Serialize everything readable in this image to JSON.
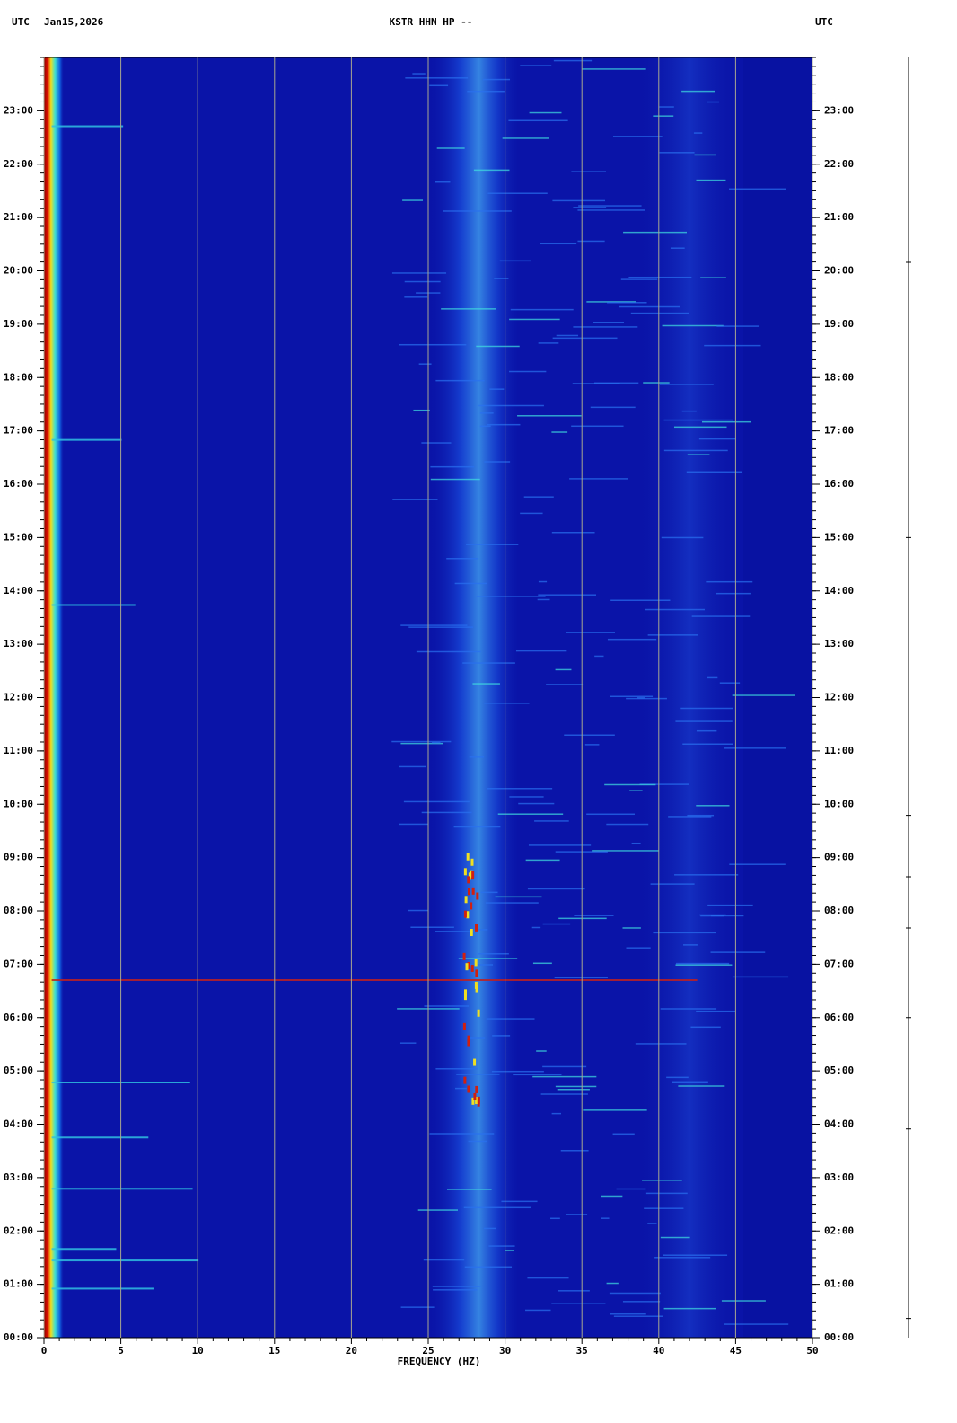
{
  "chart_data": {
    "type": "spectrogram",
    "header_left": "UTC",
    "date": "Jan15,2026",
    "title": "KSTR HHN HP --",
    "header_right": "UTC",
    "xlabel": "FREQUENCY (HZ)",
    "xlim": [
      0,
      50
    ],
    "xticks": [
      0,
      5,
      10,
      15,
      20,
      25,
      30,
      35,
      40,
      45,
      50
    ],
    "ylim": [
      0,
      24
    ],
    "yticks": [
      {
        "value": 0,
        "label": "00:00"
      },
      {
        "value": 1,
        "label": "01:00"
      },
      {
        "value": 2,
        "label": "02:00"
      },
      {
        "value": 3,
        "label": "03:00"
      },
      {
        "value": 4,
        "label": "04:00"
      },
      {
        "value": 5,
        "label": "05:00"
      },
      {
        "value": 6,
        "label": "06:00"
      },
      {
        "value": 7,
        "label": "07:00"
      },
      {
        "value": 8,
        "label": "08:00"
      },
      {
        "value": 9,
        "label": "09:00"
      },
      {
        "value": 10,
        "label": "10:00"
      },
      {
        "value": 11,
        "label": "11:00"
      },
      {
        "value": 12,
        "label": "12:00"
      },
      {
        "value": 13,
        "label": "13:00"
      },
      {
        "value": 14,
        "label": "14:00"
      },
      {
        "value": 15,
        "label": "15:00"
      },
      {
        "value": 16,
        "label": "16:00"
      },
      {
        "value": 17,
        "label": "17:00"
      },
      {
        "value": 18,
        "label": "18:00"
      },
      {
        "value": 19,
        "label": "19:00"
      },
      {
        "value": 20,
        "label": "20:00"
      },
      {
        "value": 21,
        "label": "21:00"
      },
      {
        "value": 22,
        "label": "22:00"
      },
      {
        "value": 23,
        "label": "23:00"
      }
    ],
    "grid": true,
    "grid_color": "#a8a890"
  }
}
